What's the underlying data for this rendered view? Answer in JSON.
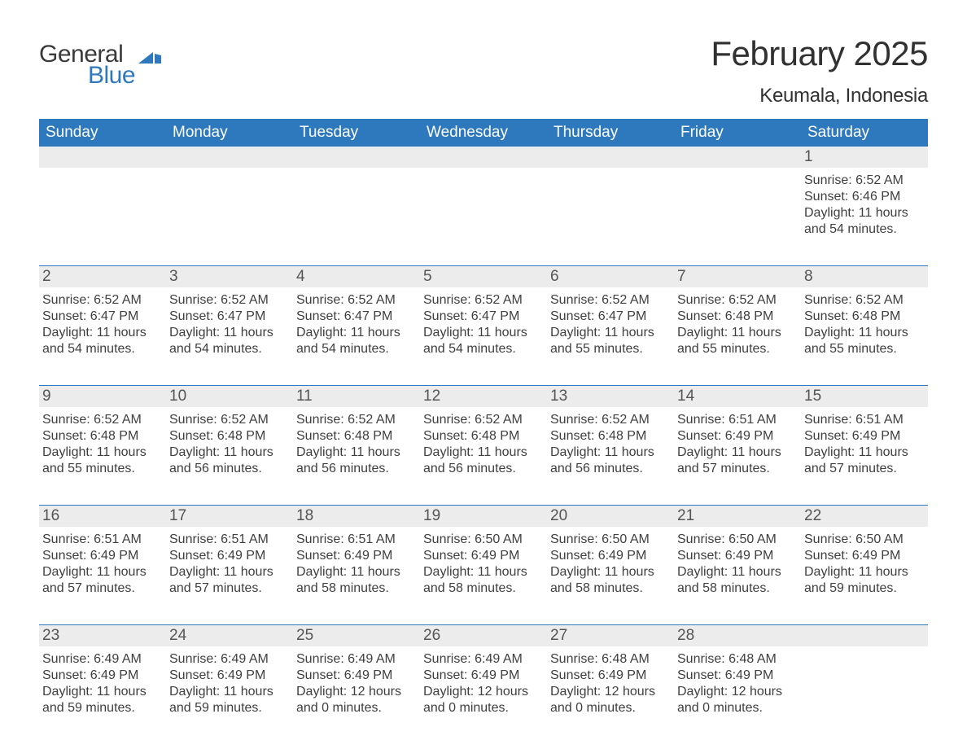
{
  "brand": {
    "word1": "General",
    "word2": "Blue",
    "word1_color": "#3a3a3a",
    "word2_color": "#2e79be",
    "icon_color": "#2e79be"
  },
  "title": "February 2025",
  "location": "Keumala, Indonesia",
  "colors": {
    "header_bg": "#2e79be",
    "header_text": "#ffffff",
    "band_bg": "#ececec",
    "rule": "#2e79be",
    "text": "#3a3a3a",
    "page_bg": "#ffffff"
  },
  "typography": {
    "title_fontsize": 42,
    "location_fontsize": 24,
    "dow_fontsize": 19,
    "daynum_fontsize": 19,
    "body_fontsize": 16
  },
  "days_of_week": [
    "Sunday",
    "Monday",
    "Tuesday",
    "Wednesday",
    "Thursday",
    "Friday",
    "Saturday"
  ],
  "labels": {
    "sunrise": "Sunrise: ",
    "sunset": "Sunset: ",
    "daylight": "Daylight: "
  },
  "weeks": [
    [
      null,
      null,
      null,
      null,
      null,
      null,
      {
        "n": "1",
        "sunrise": "6:52 AM",
        "sunset": "6:46 PM",
        "daylight": "11 hours and 54 minutes."
      }
    ],
    [
      {
        "n": "2",
        "sunrise": "6:52 AM",
        "sunset": "6:47 PM",
        "daylight": "11 hours and 54 minutes."
      },
      {
        "n": "3",
        "sunrise": "6:52 AM",
        "sunset": "6:47 PM",
        "daylight": "11 hours and 54 minutes."
      },
      {
        "n": "4",
        "sunrise": "6:52 AM",
        "sunset": "6:47 PM",
        "daylight": "11 hours and 54 minutes."
      },
      {
        "n": "5",
        "sunrise": "6:52 AM",
        "sunset": "6:47 PM",
        "daylight": "11 hours and 54 minutes."
      },
      {
        "n": "6",
        "sunrise": "6:52 AM",
        "sunset": "6:47 PM",
        "daylight": "11 hours and 55 minutes."
      },
      {
        "n": "7",
        "sunrise": "6:52 AM",
        "sunset": "6:48 PM",
        "daylight": "11 hours and 55 minutes."
      },
      {
        "n": "8",
        "sunrise": "6:52 AM",
        "sunset": "6:48 PM",
        "daylight": "11 hours and 55 minutes."
      }
    ],
    [
      {
        "n": "9",
        "sunrise": "6:52 AM",
        "sunset": "6:48 PM",
        "daylight": "11 hours and 55 minutes."
      },
      {
        "n": "10",
        "sunrise": "6:52 AM",
        "sunset": "6:48 PM",
        "daylight": "11 hours and 56 minutes."
      },
      {
        "n": "11",
        "sunrise": "6:52 AM",
        "sunset": "6:48 PM",
        "daylight": "11 hours and 56 minutes."
      },
      {
        "n": "12",
        "sunrise": "6:52 AM",
        "sunset": "6:48 PM",
        "daylight": "11 hours and 56 minutes."
      },
      {
        "n": "13",
        "sunrise": "6:52 AM",
        "sunset": "6:48 PM",
        "daylight": "11 hours and 56 minutes."
      },
      {
        "n": "14",
        "sunrise": "6:51 AM",
        "sunset": "6:49 PM",
        "daylight": "11 hours and 57 minutes."
      },
      {
        "n": "15",
        "sunrise": "6:51 AM",
        "sunset": "6:49 PM",
        "daylight": "11 hours and 57 minutes."
      }
    ],
    [
      {
        "n": "16",
        "sunrise": "6:51 AM",
        "sunset": "6:49 PM",
        "daylight": "11 hours and 57 minutes."
      },
      {
        "n": "17",
        "sunrise": "6:51 AM",
        "sunset": "6:49 PM",
        "daylight": "11 hours and 57 minutes."
      },
      {
        "n": "18",
        "sunrise": "6:51 AM",
        "sunset": "6:49 PM",
        "daylight": "11 hours and 58 minutes."
      },
      {
        "n": "19",
        "sunrise": "6:50 AM",
        "sunset": "6:49 PM",
        "daylight": "11 hours and 58 minutes."
      },
      {
        "n": "20",
        "sunrise": "6:50 AM",
        "sunset": "6:49 PM",
        "daylight": "11 hours and 58 minutes."
      },
      {
        "n": "21",
        "sunrise": "6:50 AM",
        "sunset": "6:49 PM",
        "daylight": "11 hours and 58 minutes."
      },
      {
        "n": "22",
        "sunrise": "6:50 AM",
        "sunset": "6:49 PM",
        "daylight": "11 hours and 59 minutes."
      }
    ],
    [
      {
        "n": "23",
        "sunrise": "6:49 AM",
        "sunset": "6:49 PM",
        "daylight": "11 hours and 59 minutes."
      },
      {
        "n": "24",
        "sunrise": "6:49 AM",
        "sunset": "6:49 PM",
        "daylight": "11 hours and 59 minutes."
      },
      {
        "n": "25",
        "sunrise": "6:49 AM",
        "sunset": "6:49 PM",
        "daylight": "12 hours and 0 minutes."
      },
      {
        "n": "26",
        "sunrise": "6:49 AM",
        "sunset": "6:49 PM",
        "daylight": "12 hours and 0 minutes."
      },
      {
        "n": "27",
        "sunrise": "6:48 AM",
        "sunset": "6:49 PM",
        "daylight": "12 hours and 0 minutes."
      },
      {
        "n": "28",
        "sunrise": "6:48 AM",
        "sunset": "6:49 PM",
        "daylight": "12 hours and 0 minutes."
      },
      null
    ]
  ]
}
